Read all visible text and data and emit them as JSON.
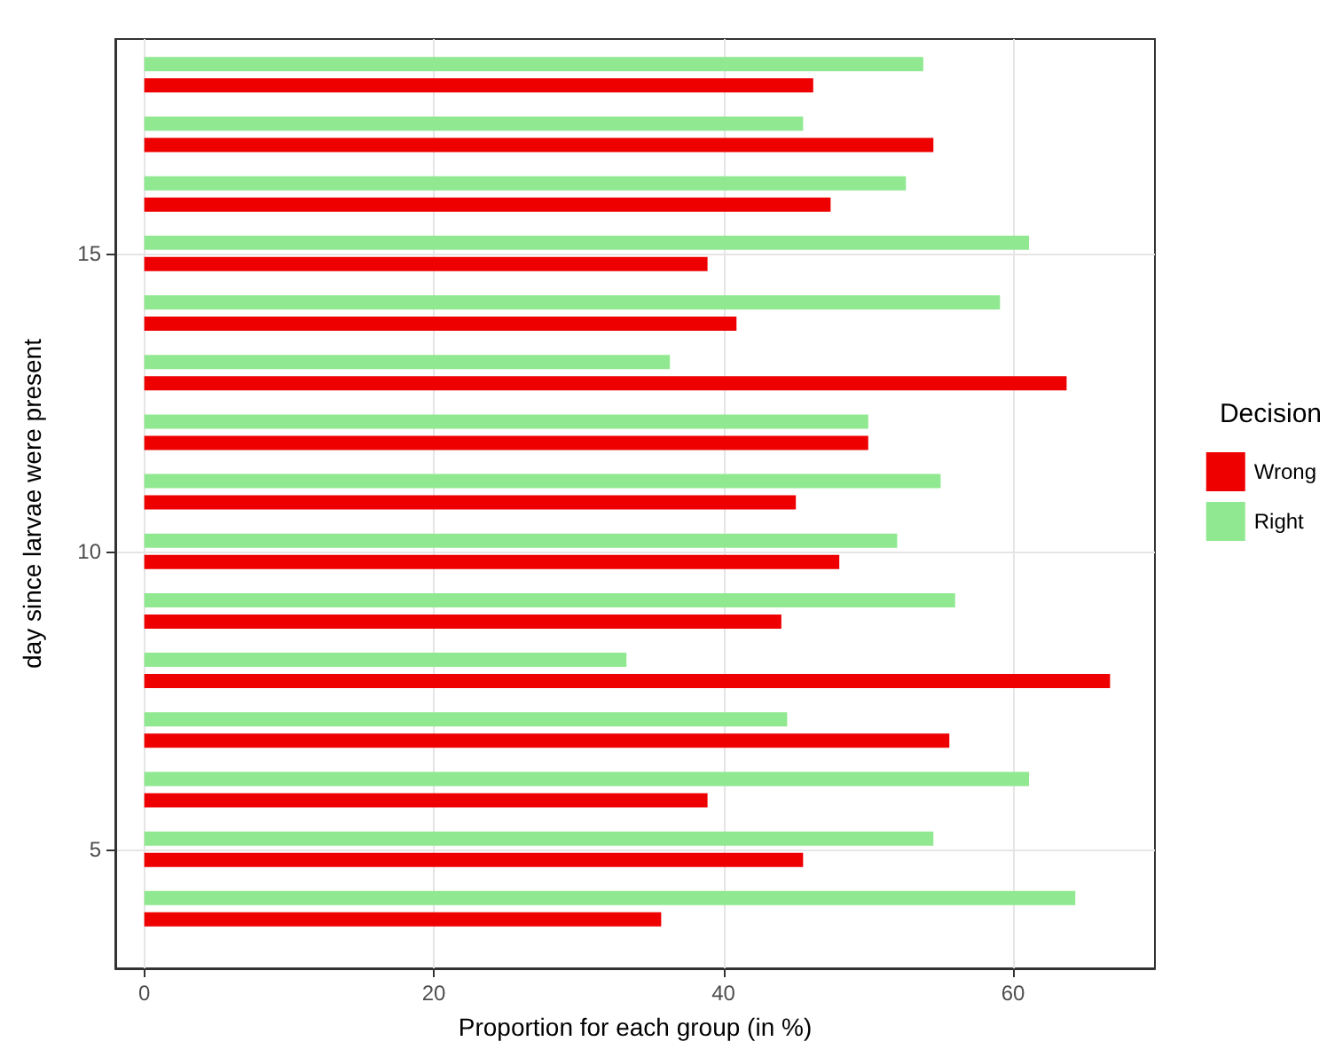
{
  "chart_data": {
    "type": "bar",
    "orientation": "horizontal",
    "xlabel": "Proportion for each group (in %)",
    "ylabel": "day since larvae were present",
    "legend_title": "Decision",
    "legend": "right",
    "grid": true,
    "x": [
      4,
      5,
      6,
      7,
      8,
      9,
      10,
      11,
      12,
      13,
      14,
      15,
      16,
      17,
      18
    ],
    "series": [
      {
        "name": "Wrong",
        "color": "#ee0000",
        "values": [
          35.7,
          45.5,
          38.9,
          55.6,
          66.7,
          44,
          48,
          45,
          50,
          63.7,
          40.9,
          38.9,
          47.4,
          54.5,
          46.2
        ]
      },
      {
        "name": "Right",
        "color": "#90e890",
        "values": [
          64.3,
          54.5,
          61.1,
          44.4,
          33.3,
          56,
          52,
          55,
          50,
          36.3,
          59.1,
          61.1,
          52.6,
          45.5,
          53.8
        ]
      }
    ],
    "xlim": [
      -2,
      69.8
    ],
    "xticks": [
      0,
      20,
      40,
      60
    ],
    "ylim": [
      3,
      18.6
    ],
    "yticks": [
      5,
      10,
      15
    ]
  }
}
